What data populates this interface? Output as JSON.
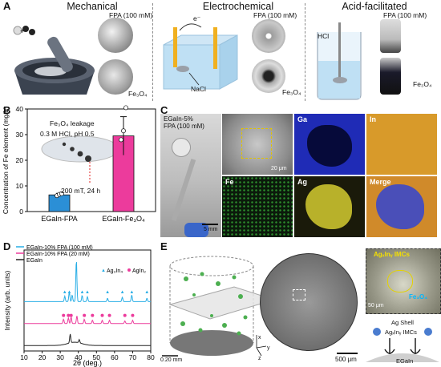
{
  "panel_a": {
    "label": "A",
    "titles": [
      "Mechanical",
      "Electrochemical",
      "Acid-facilitated"
    ],
    "fpa_label": "FPA (100 mM)",
    "fe3o4_label": "Fe₃O₄",
    "electron_label": "e⁻",
    "nacl_label": "NaCl",
    "hcl_label": "HCl"
  },
  "panel_b": {
    "label": "B",
    "inset_title": "Fe₃O₄ leakage",
    "inset_condition": "0.3 M HCl, pH 0.5",
    "inset_field": "200 mT, 24 h",
    "chart_data": {
      "type": "bar",
      "categories": [
        "EGaIn-FPA",
        "EGaIn-Fe₃O₄"
      ],
      "values": [
        6.5,
        29.5
      ],
      "errors": [
        0.6,
        7.5
      ],
      "points": [
        [
          6.2,
          6.7,
          7.0
        ],
        [
          28,
          31.5,
          40.5
        ]
      ],
      "colors": [
        "#2b8fd6",
        "#ec3b9c"
      ],
      "ylabel": "Concentration of Fe element (mg/L)",
      "ylim": [
        0,
        40
      ],
      "yticks": [
        0,
        10,
        20,
        30,
        40
      ]
    }
  },
  "panel_c": {
    "label": "C",
    "photo_caption_line1": "EGaIn-5%",
    "photo_caption_line2": "FPA (100 mM)",
    "photo_scale": "5 mm",
    "sem_scale": "20 μm",
    "maps": [
      "Ga",
      "In",
      "Fe",
      "Ag",
      "Merge"
    ]
  },
  "panel_d": {
    "label": "D",
    "legend": [
      "EGaIn-10% FPA (100 mM)",
      "EGaIn-10% FPA (20 mM)",
      "EGaIn"
    ],
    "marker_legend": [
      "Ag₃In₄",
      "AgIn₂"
    ],
    "chart_data": {
      "type": "line",
      "xlabel": "2θ (deg.)",
      "ylabel": "Intensity (arb. units)",
      "xlim": [
        10,
        80
      ],
      "xticks": [
        10,
        20,
        30,
        40,
        50,
        60,
        70,
        80
      ],
      "series": [
        {
          "name": "EGaIn-10% FPA (100 mM)",
          "color": "#29aee6",
          "offset": 2.0,
          "peaks": [
            [
              32.5,
              0.25
            ],
            [
              35.0,
              0.45
            ],
            [
              36.6,
              0.3
            ],
            [
              38.9,
              1.9
            ],
            [
              42.1,
              0.28
            ],
            [
              45.0,
              0.22
            ],
            [
              56.1,
              0.15
            ],
            [
              64.3,
              0.2
            ],
            [
              69.5,
              0.3
            ],
            [
              77.9,
              0.15
            ]
          ]
        },
        {
          "name": "EGaIn-10% FPA (20 mM)",
          "color": "#ec3b9c",
          "offset": 1.0,
          "peaks": [
            [
              31.8,
              0.2
            ],
            [
              34.5,
              0.25
            ],
            [
              36.0,
              0.3
            ],
            [
              39.2,
              0.35
            ],
            [
              43.3,
              0.2
            ],
            [
              47.8,
              0.15
            ],
            [
              53.2,
              0.15
            ],
            [
              57.2,
              0.15
            ],
            [
              65.7,
              0.12
            ],
            [
              70.0,
              0.15
            ]
          ]
        },
        {
          "name": "EGaIn",
          "color": "#222222",
          "offset": 0.0,
          "peaks": [
            [
              35.5,
              0.4
            ],
            [
              40.5,
              0.15
            ]
          ]
        }
      ],
      "markers_ag3in4": [
        32.5,
        35.0,
        42.1,
        45.0,
        56.1,
        64.3,
        69.5,
        77.9
      ],
      "markers_agin2": [
        31.8,
        34.5,
        36.0,
        43.3,
        47.8,
        53.2,
        57.2,
        65.7,
        70.0
      ]
    }
  },
  "panel_e": {
    "label": "E",
    "scale_left": "0.20 mm",
    "scale_bottom": "500 μm",
    "inset_title": "AgₓInᵧ IMCs",
    "inset_fe": "Fe₃O₄",
    "inset_scale": "50 μm",
    "schematic_shell": "Ag Shell",
    "schematic_imc": "AgₓInᵧ IMCs",
    "schematic_base": "EGaIn",
    "axis_x": "x",
    "axis_y": "y",
    "axis_z": "z"
  }
}
